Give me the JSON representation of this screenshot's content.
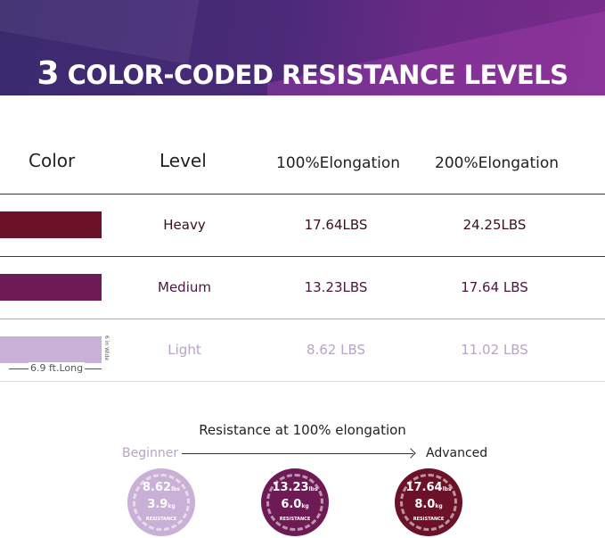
{
  "title": {
    "number": "3",
    "text": "COLOR-CODED RESISTANCE LEVELS"
  },
  "headers": [
    "Color",
    "Level",
    "100%Elongation",
    "200%Elongation"
  ],
  "rows": [
    {
      "color": "#6b1228",
      "level": "Heavy",
      "e100": "17.64LBS",
      "e200": "24.25LBS",
      "text_color": "#3a1020"
    },
    {
      "color": "#6e1a55",
      "level": "Medium",
      "e100": "13.23LBS",
      "e200": "17.64 LBS",
      "text_color": "#4a1540"
    },
    {
      "color": "#c9b0d6",
      "level": "Light",
      "e100": "8.62 LBS",
      "e200": "11.02 LBS",
      "text_color": "#b8a4c6"
    }
  ],
  "dimensions": {
    "length": "6.9 ft.Long",
    "width": "6 in Wide"
  },
  "scale": {
    "title": "Resistance at 100% elongation",
    "start": "Beginner",
    "end": "Advanced"
  },
  "badges": [
    {
      "lbs": "8.62",
      "kg": "3.9",
      "lbs_unit": "lbs",
      "kg_unit": "kg",
      "label": "RESISTANCE",
      "color": "#c9b0d6"
    },
    {
      "lbs": "13.23",
      "kg": "6.0",
      "lbs_unit": "lbs",
      "kg_unit": "kg",
      "label": "RESISTANCE",
      "color": "#6e1a55"
    },
    {
      "lbs": "17.64",
      "kg": "8.0",
      "lbs_unit": "lbs",
      "kg_unit": "kg",
      "label": "RESISTANCE",
      "color": "#6b1228"
    }
  ]
}
